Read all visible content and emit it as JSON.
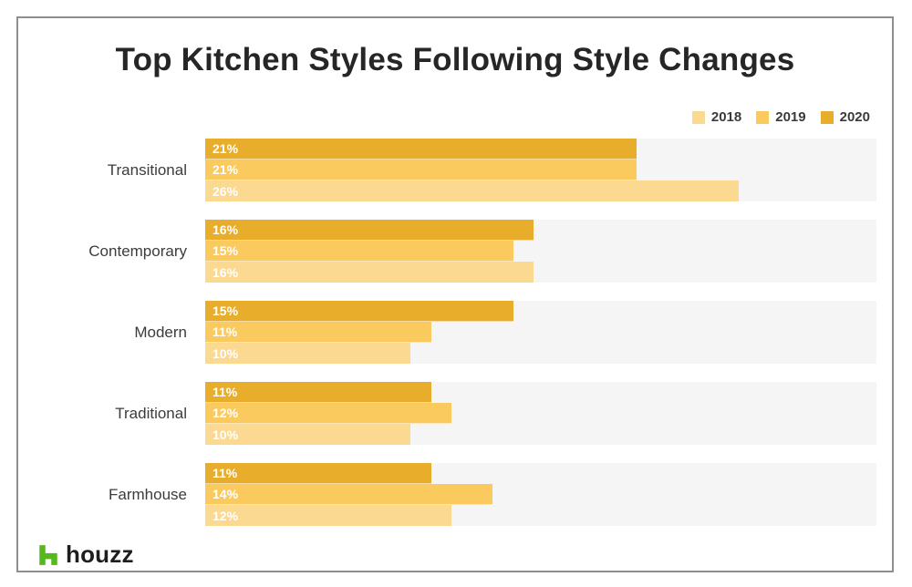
{
  "title": "Top Kitchen Styles Following Style Changes",
  "colors": {
    "y2018": "#FBD990",
    "y2019": "#FACA5E",
    "y2020": "#E8AE2B",
    "track": "#F5F5F6",
    "houzz_green": "#55B81C",
    "title_text": "#262626",
    "frame_border": "#8F8F8F"
  },
  "footer": {
    "logo_text": "houzz"
  },
  "chart_data": {
    "type": "bar",
    "orientation": "horizontal",
    "title": "Top Kitchen Styles Following Style Changes",
    "categories": [
      "Transitional",
      "Contemporary",
      "Modern",
      "Traditional",
      "Farmhouse"
    ],
    "series": [
      {
        "name": "2020",
        "values": [
          21,
          16,
          15,
          11,
          11
        ],
        "labels": [
          "21%",
          "16%",
          "15%",
          "11%",
          "11%"
        ]
      },
      {
        "name": "2019",
        "values": [
          21,
          15,
          11,
          12,
          14
        ],
        "labels": [
          "21%",
          "15%",
          "11%",
          "12%",
          "14%"
        ]
      },
      {
        "name": "2018",
        "values": [
          26,
          16,
          10,
          10,
          12
        ],
        "labels": [
          "26%",
          "16%",
          "10%",
          "10%",
          "12%"
        ]
      }
    ],
    "bar_order_top_to_bottom": [
      "2020",
      "2019",
      "2018"
    ],
    "value_suffix": "%",
    "xlim": [
      0,
      32.7
    ],
    "grid": false,
    "legend_position": "top-right",
    "legend_order": [
      "2018",
      "2019",
      "2020"
    ]
  }
}
